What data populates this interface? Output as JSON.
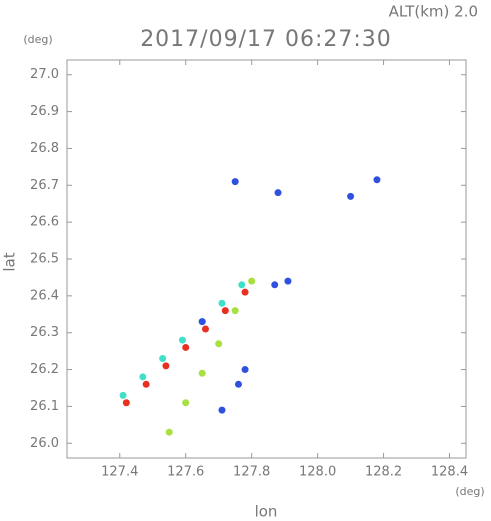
{
  "chart_data": {
    "type": "scatter",
    "title": "2017/09/17 06:27:30",
    "subtitle": "ALT(km) 2.0",
    "x_label": "lon",
    "y_label": "lat",
    "x_unit": "(deg)",
    "y_unit": "(deg)",
    "xlim": [
      127.24,
      128.45
    ],
    "ylim": [
      25.96,
      27.04
    ],
    "xticks": [
      127.4,
      127.6,
      127.8,
      {
        "value": 128.0,
        "label": "128.0"
      },
      128.2,
      128.4
    ],
    "yticks": [
      {
        "value": 26.0,
        "label": "26.0"
      },
      26.1,
      26.2,
      26.3,
      26.4,
      26.5,
      26.6,
      26.7,
      26.8,
      26.9,
      {
        "value": 27.0,
        "label": "27.0"
      }
    ],
    "series": [
      {
        "color": "#40e0c8",
        "x": [
          127.41,
          127.47,
          127.53,
          127.59,
          127.65,
          127.71,
          127.77
        ],
        "values": [
          26.13,
          26.18,
          26.23,
          26.28,
          26.33,
          26.38,
          26.43
        ]
      },
      {
        "color": "#e83020",
        "x": [
          127.42,
          127.48,
          127.54,
          127.6,
          127.66,
          127.72,
          127.78
        ],
        "values": [
          26.11,
          26.16,
          26.21,
          26.26,
          26.31,
          26.36,
          26.41
        ]
      },
      {
        "color": "#a8e040",
        "x": [
          127.55,
          127.6,
          127.65,
          127.7,
          127.75,
          127.8
        ],
        "values": [
          26.03,
          26.11,
          26.19,
          26.27,
          26.36,
          26.44
        ]
      },
      {
        "color": "#3050e0",
        "x": [
          127.75,
          127.88,
          128.1,
          128.18,
          127.91,
          127.87,
          127.65,
          127.78,
          127.76,
          127.71
        ],
        "values": [
          26.71,
          26.68,
          26.67,
          26.715,
          26.44,
          26.43,
          26.33,
          26.2,
          26.16,
          26.09
        ]
      }
    ]
  }
}
